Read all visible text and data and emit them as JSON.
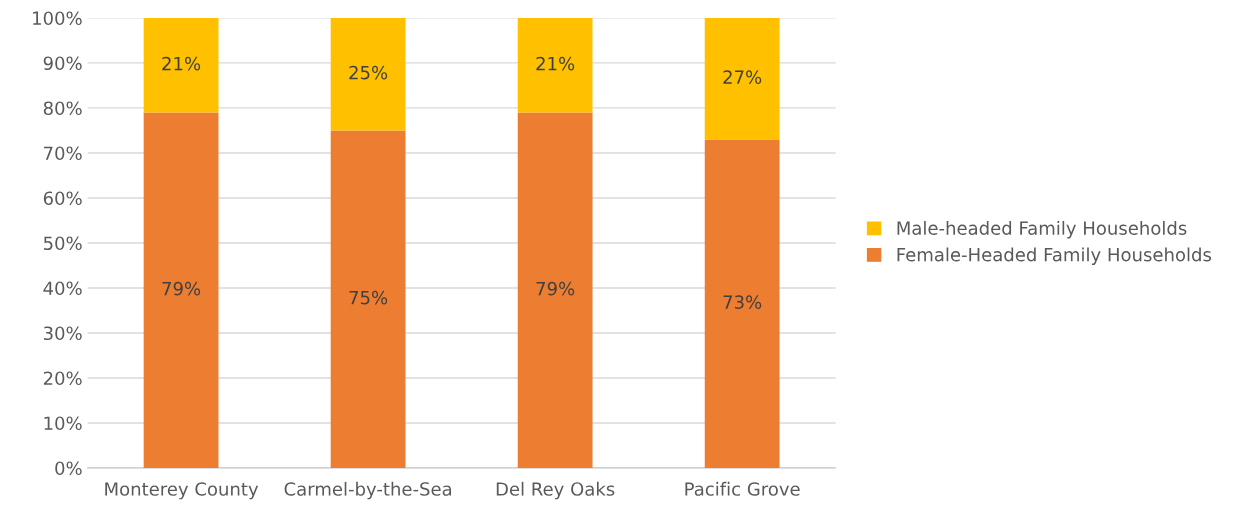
{
  "chart_data": {
    "type": "bar",
    "stacked": true,
    "categories": [
      "Monterey County",
      "Carmel-by-the-Sea",
      "Del Rey Oaks",
      "Pacific Grove"
    ],
    "series": [
      {
        "name": "Female-Headed Family Households",
        "color": "#ed7d31",
        "values": [
          79,
          75,
          79,
          73
        ],
        "value_labels": [
          "79%",
          "75%",
          "79%",
          "73%"
        ]
      },
      {
        "name": "Male-headed Family Households",
        "color": "#ffc000",
        "values": [
          21,
          25,
          21,
          27
        ],
        "value_labels": [
          "21%",
          "25%",
          "21%",
          "27%"
        ]
      }
    ],
    "ylim": [
      0,
      100
    ],
    "yticks": [
      {
        "value": 0,
        "label": "0%"
      },
      {
        "value": 10,
        "label": "10%"
      },
      {
        "value": 20,
        "label": "20%"
      },
      {
        "value": 30,
        "label": "30%"
      },
      {
        "value": 40,
        "label": "40%"
      },
      {
        "value": 50,
        "label": "50%"
      },
      {
        "value": 60,
        "label": "60%"
      },
      {
        "value": 70,
        "label": "70%"
      },
      {
        "value": 80,
        "label": "80%"
      },
      {
        "value": 90,
        "label": "90%"
      },
      {
        "value": 100,
        "label": "100%"
      }
    ],
    "grid": "y",
    "legend": "right"
  }
}
